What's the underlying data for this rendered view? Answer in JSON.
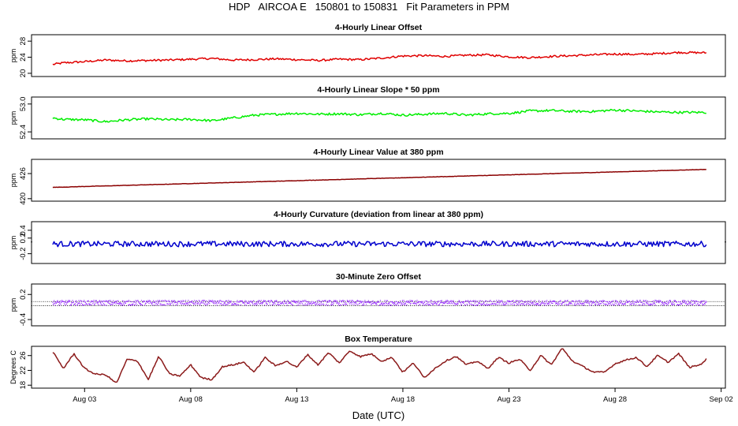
{
  "header": {
    "title": "HDP   AIRCOA E   150801 to 150831   Fit Parameters in PPM",
    "xlabel": "Date (UTC)"
  },
  "x_axis": {
    "ticks": [
      "Aug 03",
      "Aug 08",
      "Aug 13",
      "Aug 18",
      "Aug 23",
      "Aug 28",
      "Sep 02"
    ],
    "tick_days": [
      3,
      8,
      13,
      18,
      23,
      28,
      33
    ],
    "range_days": [
      0.5,
      33.2
    ]
  },
  "chart_data": [
    {
      "type": "line",
      "title": "4-Hourly Linear Offset",
      "ylabel": "ppm",
      "yticks": [
        "20",
        "24",
        "28"
      ],
      "ytick_values": [
        20,
        24,
        28
      ],
      "ylim": [
        19.2,
        29.6
      ],
      "color": "#e00000",
      "x": [
        1.5,
        2,
        3,
        4,
        5,
        6,
        7,
        8,
        9,
        10,
        11,
        12,
        13,
        14,
        15,
        16,
        17,
        18,
        19,
        20,
        21,
        22,
        23,
        24,
        25,
        26,
        27,
        28,
        29,
        30,
        31,
        32.3
      ],
      "values": [
        22.2,
        22.6,
        22.9,
        23.3,
        23.1,
        23.2,
        23.3,
        23.5,
        23.7,
        23.3,
        23.4,
        23.6,
        23.4,
        23.2,
        23.5,
        23.4,
        23.8,
        24.3,
        24.4,
        24.2,
        24.5,
        24.6,
        24.1,
        23.9,
        24.2,
        24.4,
        24.6,
        24.8,
        24.7,
        24.9,
        25.2,
        25.1
      ],
      "noise": 0.25
    },
    {
      "type": "line",
      "title": "4-Hourly Linear Slope * 50 ppm",
      "ylabel": "ppm",
      "yticks": [
        "52.4",
        "53.0"
      ],
      "ytick_values": [
        52.4,
        53.0
      ],
      "ylim": [
        52.25,
        53.15
      ],
      "color": "#00ee00",
      "x": [
        1.5,
        2,
        3,
        4,
        5,
        6,
        7,
        8,
        9,
        10,
        11,
        12,
        13,
        14,
        15,
        16,
        17,
        18,
        19,
        20,
        21,
        22,
        23,
        24,
        25,
        26,
        27,
        28,
        29,
        30,
        31,
        32.3
      ],
      "values": [
        52.7,
        52.67,
        52.66,
        52.62,
        52.66,
        52.68,
        52.66,
        52.67,
        52.64,
        52.7,
        52.76,
        52.78,
        52.8,
        52.78,
        52.79,
        52.77,
        52.8,
        52.76,
        52.78,
        52.8,
        52.76,
        52.79,
        52.8,
        52.85,
        52.86,
        52.84,
        52.84,
        52.87,
        52.85,
        52.83,
        52.82,
        52.82
      ],
      "noise": 0.025
    },
    {
      "type": "line",
      "title": "4-Hourly Linear Value at 380 ppm",
      "ylabel": "ppm",
      "yticks": [
        "420",
        "426"
      ],
      "ytick_values": [
        420,
        426
      ],
      "ylim": [
        419.4,
        429.4
      ],
      "color": "#8b0000",
      "x": [
        1.5,
        32.3
      ],
      "values": [
        422.7,
        427.0
      ],
      "noise": 0.04
    },
    {
      "type": "line",
      "title": "4-Hourly Curvature (deviation from linear at 380 ppm)",
      "ylabel": "ppm",
      "yticks": [
        "-0.2",
        "0.2",
        "0.4"
      ],
      "ytick_values": [
        -0.2,
        0.2,
        0.4
      ],
      "ylim": [
        -0.45,
        0.62
      ],
      "color": "#0000cc",
      "x": [
        1.5,
        32.3
      ],
      "values": [
        0.05,
        0.05
      ],
      "noise": 0.07,
      "outliers": [
        [
          0.5,
          0.1
        ],
        [
          33.2,
          0.1
        ]
      ]
    },
    {
      "type": "scatter",
      "title": "30-Minute Zero Offset",
      "ylabel": "ppm",
      "yticks": [
        "-0.4",
        "0.2"
      ],
      "ytick_values": [
        -0.4,
        0.2
      ],
      "ylim": [
        -0.55,
        0.45
      ],
      "color": "#9b30ff",
      "x": [
        1.5,
        32.3
      ],
      "values": [
        0.0,
        0.0
      ],
      "noise": 0.06,
      "reference_lines": [
        0.03,
        -0.07
      ]
    },
    {
      "type": "line",
      "title": "Box Temperature",
      "ylabel": "Degrees C",
      "yticks": [
        "18",
        "22",
        "26"
      ],
      "ytick_values": [
        18,
        22,
        26
      ],
      "ylim": [
        17.2,
        28.5
      ],
      "color": "#8b1a1a",
      "x": [
        1.5,
        2,
        2.5,
        3,
        3.5,
        4,
        4.5,
        5,
        5.5,
        6,
        6.5,
        7,
        7.5,
        8,
        8.5,
        9,
        9.5,
        10,
        10.5,
        11,
        11.5,
        12,
        12.5,
        13,
        13.5,
        14,
        14.5,
        15,
        15.5,
        16,
        16.5,
        17,
        17.5,
        18,
        18.5,
        19,
        19.5,
        20,
        20.5,
        21,
        21.5,
        22,
        22.5,
        23,
        23.5,
        24,
        24.5,
        25,
        25.5,
        26,
        26.5,
        27,
        27.5,
        28,
        28.5,
        29,
        29.5,
        30,
        30.5,
        31,
        31.5,
        32,
        32.3
      ],
      "values": [
        27,
        22.5,
        26.5,
        22.5,
        21,
        20.8,
        18.5,
        25,
        24.5,
        19.5,
        25.8,
        21,
        20.5,
        23.5,
        20,
        19.5,
        23,
        23.5,
        24.2,
        21.5,
        25.5,
        23.2,
        24.5,
        22.8,
        26.3,
        23.5,
        26.8,
        24,
        27.3,
        25.7,
        26.5,
        24.5,
        25.5,
        21.5,
        24,
        20,
        22.5,
        24.5,
        25.8,
        23.5,
        24.5,
        22.5,
        25.5,
        24,
        25,
        22,
        26,
        23.5,
        28,
        24.5,
        23,
        21.5,
        21.5,
        23.8,
        24.8,
        25.5,
        23,
        26,
        24.2,
        26.5,
        22.8,
        23.5,
        25
      ],
      "noise": 0.2
    }
  ]
}
